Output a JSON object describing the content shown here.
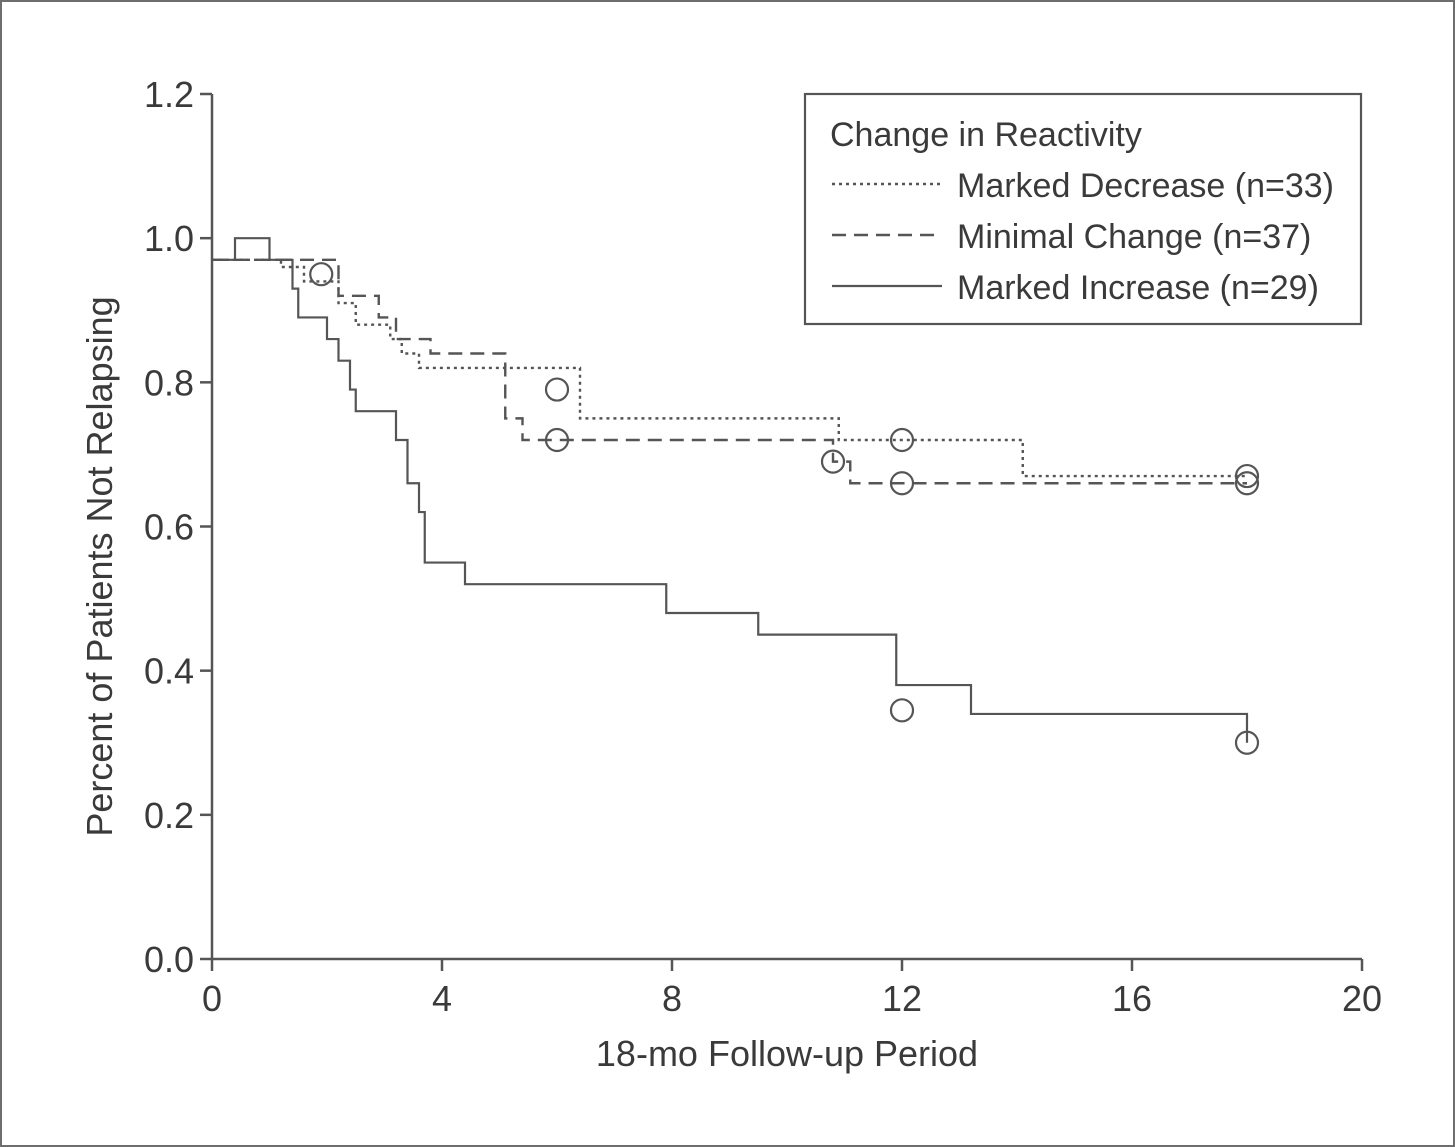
{
  "chart_data": {
    "type": "line",
    "title": "",
    "xlabel": "18-mo Follow-up Period",
    "ylabel": "Percent of Patients Not Relapsing",
    "xlim": [
      0,
      20
    ],
    "ylim": [
      0,
      1.2
    ],
    "xticks": [
      0,
      4,
      8,
      12,
      16,
      20
    ],
    "xtick_labels": [
      "0",
      "4",
      "8",
      "12",
      "16",
      "20"
    ],
    "yticks": [
      0.0,
      0.2,
      0.4,
      0.6,
      0.8,
      1.0,
      1.2
    ],
    "ytick_labels": [
      "0.0",
      "0.2",
      "0.4",
      "0.6",
      "0.8",
      "1.0",
      "1.2"
    ],
    "grid": false,
    "legend": {
      "title": "Change in Reactivity",
      "position": "top-right"
    },
    "series": [
      {
        "name": "Marked Decrease (n=33)",
        "line_style": "dotted",
        "step": true,
        "x": [
          0,
          0.5,
          1.2,
          1.6,
          2.2,
          2.5,
          3.1,
          3.3,
          3.6,
          5.0,
          6.4,
          10.9,
          14.1,
          18.0
        ],
        "y": [
          0.97,
          0.97,
          0.96,
          0.94,
          0.91,
          0.88,
          0.86,
          0.84,
          0.82,
          0.82,
          0.75,
          0.72,
          0.67,
          0.67
        ],
        "censored": [
          {
            "x": 6.0,
            "y": 0.79
          },
          {
            "x": 12.0,
            "y": 0.72
          },
          {
            "x": 18.0,
            "y": 0.67
          }
        ]
      },
      {
        "name": "Minimal Change (n=37)",
        "line_style": "dashed",
        "step": true,
        "x": [
          0,
          1.2,
          2.2,
          2.9,
          3.2,
          3.8,
          4.8,
          5.1,
          5.4,
          9.5,
          10.8,
          11.1,
          18.0
        ],
        "y": [
          0.97,
          0.97,
          0.92,
          0.89,
          0.86,
          0.84,
          0.84,
          0.75,
          0.72,
          0.72,
          0.69,
          0.66,
          0.66
        ],
        "censored": [
          {
            "x": 1.9,
            "y": 0.95
          },
          {
            "x": 6.0,
            "y": 0.72
          },
          {
            "x": 10.8,
            "y": 0.69
          },
          {
            "x": 12.0,
            "y": 0.66
          },
          {
            "x": 18.0,
            "y": 0.66
          }
        ]
      },
      {
        "name": "Marked Increase (n=29)",
        "line_style": "solid",
        "step": true,
        "x": [
          0,
          0.4,
          1.0,
          1.4,
          1.5,
          2.0,
          2.2,
          2.4,
          2.5,
          3.1,
          3.2,
          3.4,
          3.6,
          3.7,
          4.4,
          7.9,
          9.5,
          11.9,
          13.2,
          18.0
        ],
        "y": [
          0.97,
          1.0,
          0.97,
          0.93,
          0.89,
          0.86,
          0.83,
          0.79,
          0.76,
          0.76,
          0.72,
          0.66,
          0.62,
          0.55,
          0.52,
          0.48,
          0.45,
          0.38,
          0.34,
          0.3
        ],
        "censored": [
          {
            "x": 12.0,
            "y": 0.345
          },
          {
            "x": 18.0,
            "y": 0.3
          }
        ]
      }
    ]
  }
}
